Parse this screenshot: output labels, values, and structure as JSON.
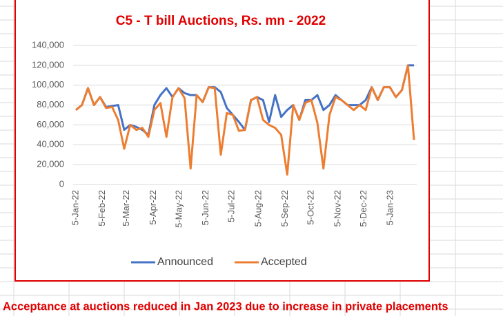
{
  "chart_data": {
    "type": "line",
    "title": "C5 - T bill Auctions, Rs. mn - 2022",
    "annotation": "Acceptance at auctions reduced in Jan 2023 due to increase in private placements",
    "x": [
      "5-Jan-22",
      "12-Jan-22",
      "19-Jan-22",
      "26-Jan-22",
      "2-Feb-22",
      "9-Feb-22",
      "16-Feb-22",
      "23-Feb-22",
      "2-Mar-22",
      "9-Mar-22",
      "16-Mar-22",
      "23-Mar-22",
      "30-Mar-22",
      "6-Apr-22",
      "13-Apr-22",
      "20-Apr-22",
      "27-Apr-22",
      "4-May-22",
      "11-May-22",
      "18-May-22",
      "25-May-22",
      "1-Jun-22",
      "8-Jun-22",
      "15-Jun-22",
      "22-Jun-22",
      "29-Jun-22",
      "6-Jul-22",
      "13-Jul-22",
      "20-Jul-22",
      "27-Jul-22",
      "3-Aug-22",
      "10-Aug-22",
      "17-Aug-22",
      "24-Aug-22",
      "31-Aug-22",
      "7-Sep-22",
      "14-Sep-22",
      "21-Sep-22",
      "28-Sep-22",
      "5-Oct-22",
      "12-Oct-22",
      "19-Oct-22",
      "26-Oct-22",
      "2-Nov-22",
      "9-Nov-22",
      "16-Nov-22",
      "23-Nov-22",
      "30-Nov-22",
      "7-Dec-22",
      "14-Dec-22",
      "21-Dec-22",
      "28-Dec-22",
      "4-Jan-23",
      "11-Jan-23",
      "18-Jan-23",
      "25-Jan-23",
      "1-Feb-23"
    ],
    "xticks": [
      "5-Jan-22",
      "5-Feb-22",
      "5-Mar-22",
      "5-Apr-22",
      "5-May-22",
      "5-Jun-22",
      "5-Jul-22",
      "5-Aug-22",
      "5-Sep-22",
      "5-Oct-22",
      "5-Nov-22",
      "5-Dec-22",
      "5-Jan-23"
    ],
    "series": [
      {
        "name": "Announced",
        "color": "#4472c4",
        "values": [
          75000,
          80000,
          97000,
          80000,
          88000,
          78000,
          79000,
          80000,
          55000,
          60000,
          58000,
          55000,
          50000,
          80000,
          90000,
          97000,
          88000,
          97000,
          92000,
          90000,
          90000,
          83000,
          98000,
          98000,
          93000,
          77000,
          70000,
          63000,
          55000,
          85000,
          88000,
          85000,
          63000,
          90000,
          68000,
          75000,
          80000,
          65000,
          85000,
          85000,
          90000,
          75000,
          80000,
          90000,
          85000,
          80000,
          80000,
          80000,
          85000,
          98000,
          85000,
          98000,
          98000,
          88000,
          95000,
          120000,
          120000
        ]
      },
      {
        "name": "Accepted",
        "color": "#ed7d31",
        "values": [
          75000,
          80000,
          97000,
          80000,
          88000,
          77000,
          78000,
          65000,
          36000,
          60000,
          55000,
          57000,
          48000,
          75000,
          82000,
          48000,
          88000,
          97000,
          87000,
          16000,
          90000,
          83000,
          98000,
          97000,
          30000,
          72000,
          70000,
          54000,
          55000,
          85000,
          88000,
          65000,
          60000,
          57000,
          50000,
          10000,
          80000,
          65000,
          82000,
          85000,
          62000,
          16000,
          70000,
          88000,
          85000,
          80000,
          75000,
          80000,
          75000,
          98000,
          85000,
          98000,
          98000,
          88000,
          95000,
          120000,
          45000
        ]
      }
    ],
    "ylim": [
      0,
      140000
    ],
    "yticks": [
      0,
      {
        "value": 20000,
        "label": "20,000"
      },
      {
        "value": 40000,
        "label": "40,000"
      },
      {
        "value": 60000,
        "label": "60,000"
      },
      {
        "value": 80000,
        "label": "80,000"
      },
      {
        "value": 100000,
        "label": "100,000"
      },
      {
        "value": 120000,
        "label": "120,000"
      },
      {
        "value": 140000,
        "label": "140,000"
      }
    ],
    "grid": true,
    "legend": "bottom"
  }
}
